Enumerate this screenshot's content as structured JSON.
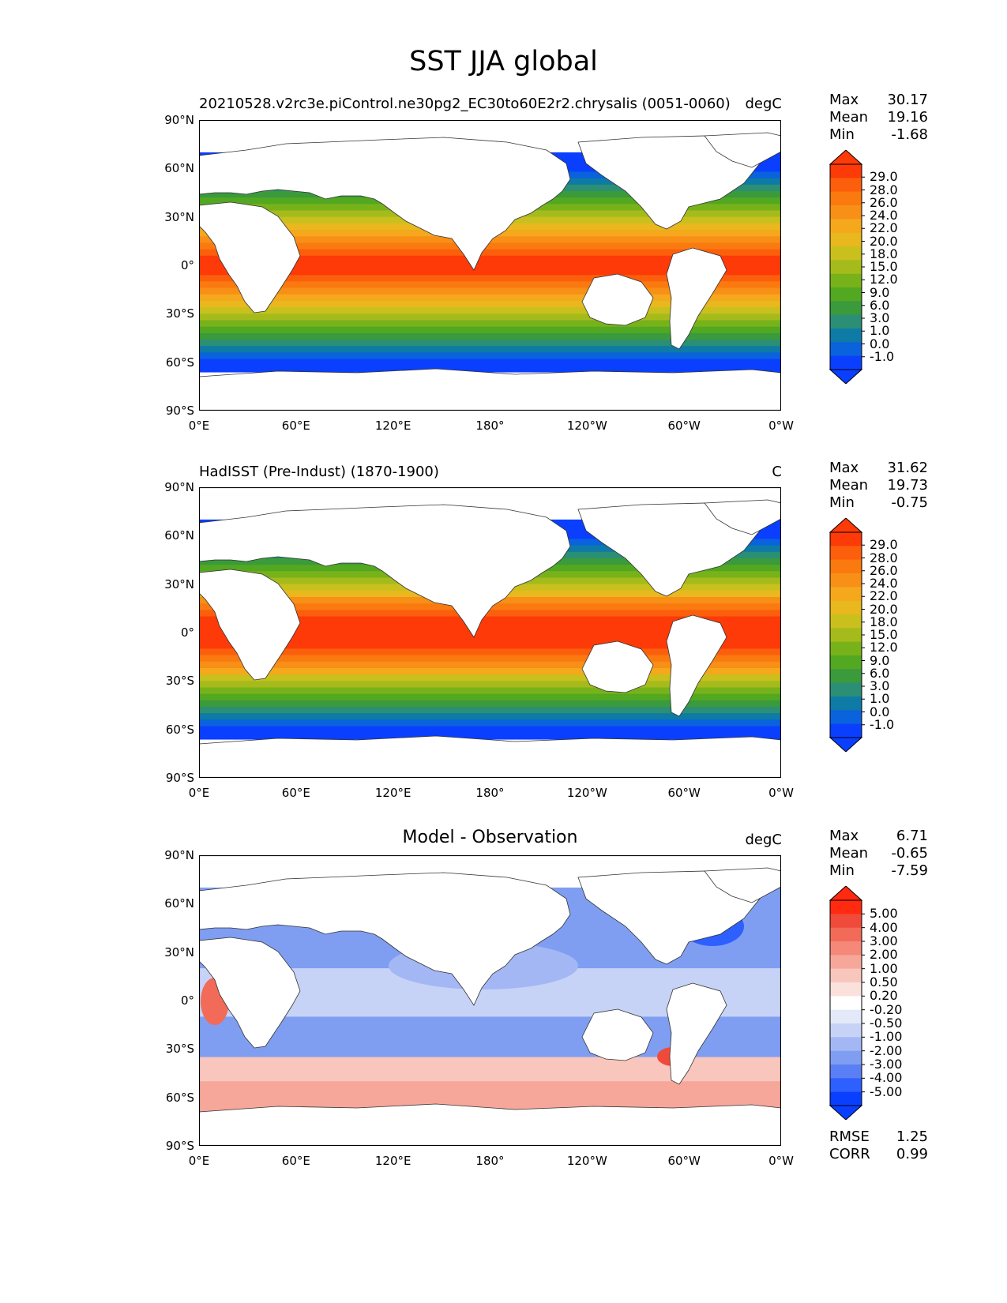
{
  "figure": {
    "title": "SST JJA global"
  },
  "axes": {
    "lat_labels": [
      "90°N",
      "60°N",
      "30°N",
      "0°",
      "30°S",
      "60°S",
      "90°S"
    ],
    "lon_labels": [
      "0°E",
      "60°E",
      "120°E",
      "180°",
      "120°W",
      "60°W",
      "0°W"
    ]
  },
  "colors": {
    "abs_scale": [
      "#0a3fff",
      "#0a62dd",
      "#0e7aa6",
      "#2a8f74",
      "#3a9a3c",
      "#52a820",
      "#78b21a",
      "#a5bb1c",
      "#c9c01e",
      "#e8b81e",
      "#f5a81c",
      "#f88f16",
      "#fb7a10",
      "#fc5f0c",
      "#fd3a08"
    ],
    "diff_scale": [
      "#0a3fff",
      "#2e5fff",
      "#5a7ff5",
      "#7f9ef2",
      "#a3b7f4",
      "#c6d3f6",
      "#e4e9f9",
      "#ffffff",
      "#fbe1dc",
      "#f9c6bd",
      "#f6a79a",
      "#f58878",
      "#f26b58",
      "#f04a3a",
      "#ff2a10"
    ]
  },
  "panels": [
    {
      "id": "model",
      "title": "20210528.v2rc3e.piControl.ne30pg2_EC30to60E2r2.chrysalis (0051-0060)",
      "title_center": "",
      "units": "degC",
      "stats": {
        "max_label": "Max",
        "max": "30.17",
        "mean_label": "Mean",
        "mean": "19.16",
        "min_label": "Min",
        "min": "-1.68"
      },
      "colorbar_labels": [
        "29.0",
        "28.0",
        "26.0",
        "24.0",
        "22.0",
        "20.0",
        "18.0",
        "15.0",
        "12.0",
        "9.0",
        "6.0",
        "3.0",
        "1.0",
        "0.0",
        "-1.0"
      ]
    },
    {
      "id": "obs",
      "title": "HadISST (Pre-Indust) (1870-1900)",
      "title_center": "",
      "units": "C",
      "stats": {
        "max_label": "Max",
        "max": "31.62",
        "mean_label": "Mean",
        "mean": "19.73",
        "min_label": "Min",
        "min": "-0.75"
      },
      "colorbar_labels": [
        "29.0",
        "28.0",
        "26.0",
        "24.0",
        "22.0",
        "20.0",
        "18.0",
        "15.0",
        "12.0",
        "9.0",
        "6.0",
        "3.0",
        "1.0",
        "0.0",
        "-1.0"
      ]
    },
    {
      "id": "diff",
      "title": "",
      "title_center": "Model - Observation",
      "units": "degC",
      "stats": {
        "max_label": "Max",
        "max": "6.71",
        "mean_label": "Mean",
        "mean": "-0.65",
        "min_label": "Min",
        "min": "-7.59"
      },
      "colorbar_labels": [
        "5.00",
        "4.00",
        "3.00",
        "2.00",
        "1.00",
        "0.50",
        "0.20",
        "-0.20",
        "-0.50",
        "-1.00",
        "-2.00",
        "-3.00",
        "-4.00",
        "-5.00"
      ],
      "footer": {
        "rmse_label": "RMSE",
        "rmse": "1.25",
        "corr_label": "CORR",
        "corr": "0.99"
      }
    }
  ]
}
